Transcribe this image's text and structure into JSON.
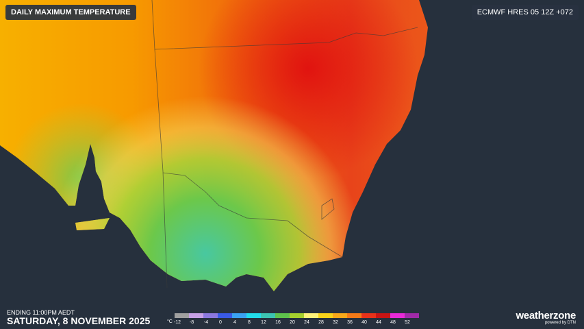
{
  "header": {
    "title": "DAILY MAXIMUM TEMPERATURE",
    "model": "ECMWF HRES 05 12Z +072"
  },
  "footer": {
    "ending": "ENDING 11:00PM AEDT",
    "date": "SATURDAY, 8 NOVEMBER 2025"
  },
  "legend": {
    "unit": "°C",
    "ticks": [
      -12,
      -8,
      -4,
      0,
      4,
      8,
      12,
      16,
      20,
      24,
      28,
      32,
      36,
      40,
      44,
      48,
      52
    ],
    "colors": [
      "#a0a0a0",
      "#c6a0e6",
      "#8c78de",
      "#3a5ae6",
      "#3aa2f2",
      "#22dcea",
      "#3cc4b2",
      "#5ec24c",
      "#a6d02e",
      "#fff27a",
      "#f8d21a",
      "#f8a81a",
      "#f47a18",
      "#e8321a",
      "#c81414",
      "#e82ad8",
      "#a02aa8"
    ]
  },
  "brand": {
    "name": "weatherzone",
    "tagline": "powered by DTN"
  }
}
